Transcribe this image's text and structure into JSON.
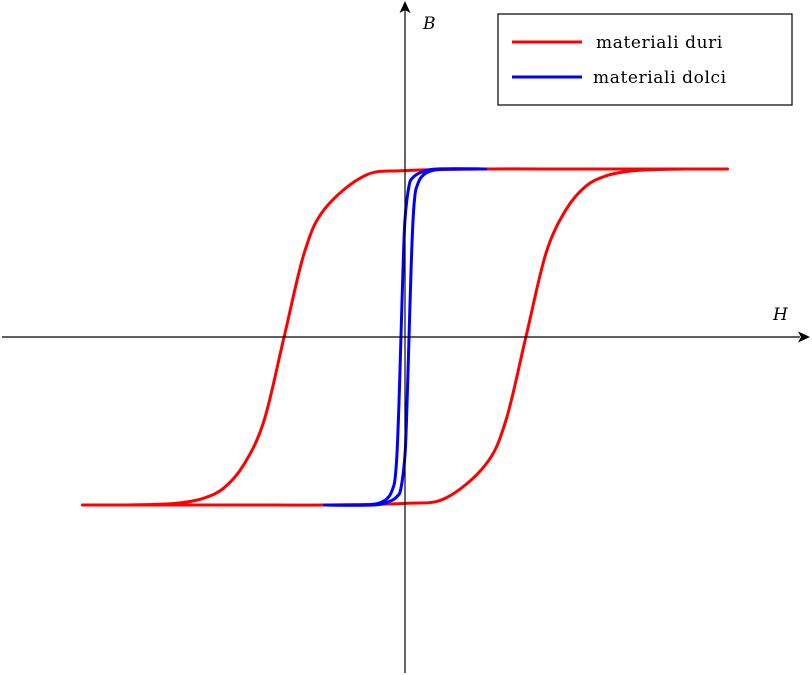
{
  "chart_data": {
    "type": "line",
    "title": "",
    "xlabel": "H",
    "ylabel": "B",
    "grid": false,
    "axes_style": "centered-arrows",
    "xlim": [
      -1.1,
      1.1
    ],
    "ylim": [
      -1.0,
      1.0
    ],
    "legend": {
      "placement": "top-right",
      "entries": [
        "materiali duri",
        "materiali dolci"
      ]
    },
    "series": [
      {
        "name": "materiali duri",
        "color": "#ff0000",
        "branches": [
          {
            "x": [
              -0.8,
              -0.7,
              -0.6,
              -0.55,
              -0.5,
              -0.45,
              -0.4,
              -0.35,
              -0.3,
              -0.25,
              -0.2,
              -0.1,
              0.0,
              0.2,
              0.4,
              0.6,
              0.8
            ],
            "y": [
              -1.0,
              -1.0,
              -0.995,
              -0.985,
              -0.96,
              -0.9,
              -0.76,
              -0.5,
              0.0,
              0.5,
              0.76,
              0.96,
              0.99,
              1.0,
              1.0,
              1.0,
              1.0
            ]
          },
          {
            "x": [
              0.8,
              0.7,
              0.6,
              0.55,
              0.5,
              0.45,
              0.4,
              0.35,
              0.3,
              0.25,
              0.2,
              0.1,
              0.0,
              -0.2,
              -0.4,
              -0.6,
              -0.8
            ],
            "y": [
              1.0,
              1.0,
              0.995,
              0.985,
              0.96,
              0.9,
              0.76,
              0.5,
              0.0,
              -0.5,
              -0.76,
              -0.96,
              -0.99,
              -1.0,
              -1.0,
              -1.0,
              -1.0
            ]
          }
        ]
      },
      {
        "name": "materiali dolci",
        "color": "#0000ff",
        "branches": [
          {
            "x": [
              -0.2,
              -0.1,
              -0.06,
              -0.04,
              -0.03,
              -0.025,
              -0.02,
              -0.015,
              -0.01,
              -0.005,
              0.0,
              0.01,
              0.02,
              0.04,
              0.08,
              0.2
            ],
            "y": [
              -1.0,
              -1.0,
              -0.985,
              -0.95,
              -0.9,
              -0.85,
              -0.7,
              -0.4,
              0.0,
              0.4,
              0.7,
              0.9,
              0.95,
              0.98,
              1.0,
              1.0
            ]
          },
          {
            "x": [
              0.2,
              0.1,
              0.06,
              0.04,
              0.03,
              0.025,
              0.02,
              0.015,
              0.01,
              0.005,
              0.0,
              -0.01,
              -0.02,
              -0.04,
              -0.08,
              -0.2
            ],
            "y": [
              1.0,
              1.0,
              0.985,
              0.95,
              0.9,
              0.85,
              0.7,
              0.4,
              0.0,
              -0.4,
              -0.7,
              -0.9,
              -0.95,
              -0.98,
              -1.0,
              -1.0
            ]
          }
        ]
      }
    ]
  }
}
